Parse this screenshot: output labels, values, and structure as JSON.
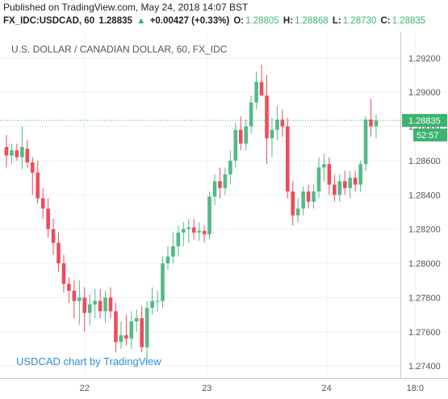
{
  "header": {
    "published": "Published on TradingView.com, May 24, 2018 14:07 BST",
    "symbol": "FX_IDC:USDCAD, 60",
    "last": "1.28835",
    "change": "+0.00427 (+0.33%)",
    "o_label": "O:",
    "o_val": "1.28805",
    "h_label": "H:",
    "h_val": "1.28868",
    "l_label": "L:",
    "l_val": "1.28730",
    "c_label": "C:",
    "c_val": "1.28835"
  },
  "chart_title": "U.S. DOLLAR / CANADIAN DOLLAR, 60, FX_IDC",
  "watermark": "USDCAD chart by TradingView",
  "colors": {
    "up": "#53b987",
    "down": "#eb4d5c",
    "grid": "#eef0f3",
    "axis_text": "#555555",
    "price_line": "#3cb371",
    "price_tag": "#3cb371",
    "timer_tag": "#3cb371"
  },
  "chart_data": {
    "type": "candlestick",
    "title": "U.S. DOLLAR / CANADIAN DOLLAR, 60, FX_IDC",
    "ylim": [
      1.2733,
      1.2935
    ],
    "yticks": [
      "1.29200",
      "1.29000",
      "1.28800",
      "1.28600",
      "1.28400",
      "1.28200",
      "1.28000",
      "1.27800",
      "1.27600",
      "1.27400"
    ],
    "ytick_values": [
      1.292,
      1.29,
      1.288,
      1.286,
      1.284,
      1.282,
      1.28,
      1.278,
      1.276,
      1.274
    ],
    "xticks": [
      "22",
      "23",
      "24",
      "18:0"
    ],
    "xtick_index": [
      15,
      38.5,
      61.5,
      78.5
    ],
    "last_price": "1.28835",
    "last_price_value": 1.28835,
    "countdown": "52:57",
    "candles": [
      {
        "o": 1.2868,
        "h": 1.2875,
        "l": 1.2856,
        "c": 1.2863
      },
      {
        "o": 1.2863,
        "h": 1.287,
        "l": 1.2858,
        "c": 1.2866
      },
      {
        "o": 1.2866,
        "h": 1.287,
        "l": 1.286,
        "c": 1.2862
      },
      {
        "o": 1.2862,
        "h": 1.288,
        "l": 1.2855,
        "c": 1.2868
      },
      {
        "o": 1.2867,
        "h": 1.2872,
        "l": 1.2856,
        "c": 1.2859
      },
      {
        "o": 1.2859,
        "h": 1.2862,
        "l": 1.284,
        "c": 1.2853
      },
      {
        "o": 1.2853,
        "h": 1.286,
        "l": 1.2835,
        "c": 1.2838
      },
      {
        "o": 1.2838,
        "h": 1.2844,
        "l": 1.2826,
        "c": 1.2832
      },
      {
        "o": 1.2832,
        "h": 1.2838,
        "l": 1.2815,
        "c": 1.282
      },
      {
        "o": 1.282,
        "h": 1.2826,
        "l": 1.2805,
        "c": 1.2812
      },
      {
        "o": 1.2812,
        "h": 1.2818,
        "l": 1.2795,
        "c": 1.28
      },
      {
        "o": 1.28,
        "h": 1.2805,
        "l": 1.2783,
        "c": 1.2788
      },
      {
        "o": 1.2788,
        "h": 1.2792,
        "l": 1.2777,
        "c": 1.2784
      },
      {
        "o": 1.2784,
        "h": 1.279,
        "l": 1.2768,
        "c": 1.2778
      },
      {
        "o": 1.2778,
        "h": 1.279,
        "l": 1.2764,
        "c": 1.278
      },
      {
        "o": 1.278,
        "h": 1.2786,
        "l": 1.276,
        "c": 1.2771
      },
      {
        "o": 1.2771,
        "h": 1.2782,
        "l": 1.2764,
        "c": 1.2776
      },
      {
        "o": 1.2776,
        "h": 1.2785,
        "l": 1.2768,
        "c": 1.2778
      },
      {
        "o": 1.2778,
        "h": 1.2785,
        "l": 1.2768,
        "c": 1.2772
      },
      {
        "o": 1.2772,
        "h": 1.2784,
        "l": 1.2765,
        "c": 1.278
      },
      {
        "o": 1.278,
        "h": 1.2786,
        "l": 1.2768,
        "c": 1.2772
      },
      {
        "o": 1.2772,
        "h": 1.2777,
        "l": 1.2748,
        "c": 1.2754
      },
      {
        "o": 1.2754,
        "h": 1.2766,
        "l": 1.275,
        "c": 1.2758
      },
      {
        "o": 1.2758,
        "h": 1.277,
        "l": 1.2752,
        "c": 1.2756
      },
      {
        "o": 1.2756,
        "h": 1.2772,
        "l": 1.275,
        "c": 1.2766
      },
      {
        "o": 1.2766,
        "h": 1.2773,
        "l": 1.276,
        "c": 1.2768
      },
      {
        "o": 1.2768,
        "h": 1.2775,
        "l": 1.2748,
        "c": 1.2751
      },
      {
        "o": 1.2751,
        "h": 1.2778,
        "l": 1.2743,
        "c": 1.2774
      },
      {
        "o": 1.2774,
        "h": 1.2786,
        "l": 1.277,
        "c": 1.2778
      },
      {
        "o": 1.2778,
        "h": 1.2784,
        "l": 1.2772,
        "c": 1.2778
      },
      {
        "o": 1.2778,
        "h": 1.2804,
        "l": 1.2774,
        "c": 1.28
      },
      {
        "o": 1.28,
        "h": 1.281,
        "l": 1.2796,
        "c": 1.2804
      },
      {
        "o": 1.2804,
        "h": 1.2818,
        "l": 1.28,
        "c": 1.281
      },
      {
        "o": 1.281,
        "h": 1.2822,
        "l": 1.2804,
        "c": 1.2818
      },
      {
        "o": 1.2818,
        "h": 1.2824,
        "l": 1.281,
        "c": 1.282
      },
      {
        "o": 1.282,
        "h": 1.2826,
        "l": 1.2812,
        "c": 1.2821
      },
      {
        "o": 1.2821,
        "h": 1.2826,
        "l": 1.2814,
        "c": 1.2818
      },
      {
        "o": 1.2818,
        "h": 1.2824,
        "l": 1.2813,
        "c": 1.2819
      },
      {
        "o": 1.2819,
        "h": 1.2822,
        "l": 1.2812,
        "c": 1.2817
      },
      {
        "o": 1.2817,
        "h": 1.2842,
        "l": 1.2814,
        "c": 1.2839
      },
      {
        "o": 1.2839,
        "h": 1.2852,
        "l": 1.2834,
        "c": 1.2848
      },
      {
        "o": 1.2848,
        "h": 1.2856,
        "l": 1.2838,
        "c": 1.2844
      },
      {
        "o": 1.2844,
        "h": 1.2856,
        "l": 1.284,
        "c": 1.2852
      },
      {
        "o": 1.2852,
        "h": 1.2866,
        "l": 1.2846,
        "c": 1.286
      },
      {
        "o": 1.286,
        "h": 1.2882,
        "l": 1.2856,
        "c": 1.2878
      },
      {
        "o": 1.2878,
        "h": 1.2886,
        "l": 1.2866,
        "c": 1.287
      },
      {
        "o": 1.287,
        "h": 1.2884,
        "l": 1.2866,
        "c": 1.288
      },
      {
        "o": 1.288,
        "h": 1.2898,
        "l": 1.2876,
        "c": 1.2894
      },
      {
        "o": 1.2894,
        "h": 1.2912,
        "l": 1.289,
        "c": 1.2906
      },
      {
        "o": 1.2906,
        "h": 1.2916,
        "l": 1.2898,
        "c": 1.2898
      },
      {
        "o": 1.2898,
        "h": 1.291,
        "l": 1.2858,
        "c": 1.2873
      },
      {
        "o": 1.2873,
        "h": 1.2885,
        "l": 1.2862,
        "c": 1.2878
      },
      {
        "o": 1.2878,
        "h": 1.2892,
        "l": 1.2872,
        "c": 1.2884
      },
      {
        "o": 1.2884,
        "h": 1.289,
        "l": 1.2874,
        "c": 1.288
      },
      {
        "o": 1.288,
        "h": 1.2885,
        "l": 1.2838,
        "c": 1.2842
      },
      {
        "o": 1.2842,
        "h": 1.2848,
        "l": 1.2822,
        "c": 1.2828
      },
      {
        "o": 1.2828,
        "h": 1.2838,
        "l": 1.2824,
        "c": 1.2832
      },
      {
        "o": 1.2832,
        "h": 1.2845,
        "l": 1.2828,
        "c": 1.2842
      },
      {
        "o": 1.2842,
        "h": 1.2846,
        "l": 1.2832,
        "c": 1.2836
      },
      {
        "o": 1.2836,
        "h": 1.2846,
        "l": 1.2832,
        "c": 1.2842
      },
      {
        "o": 1.2842,
        "h": 1.2862,
        "l": 1.2838,
        "c": 1.2856
      },
      {
        "o": 1.2856,
        "h": 1.2864,
        "l": 1.2848,
        "c": 1.2858
      },
      {
        "o": 1.2858,
        "h": 1.2862,
        "l": 1.284,
        "c": 1.2846
      },
      {
        "o": 1.2846,
        "h": 1.2852,
        "l": 1.2836,
        "c": 1.284
      },
      {
        "o": 1.284,
        "h": 1.2852,
        "l": 1.2836,
        "c": 1.2848
      },
      {
        "o": 1.2848,
        "h": 1.2854,
        "l": 1.284,
        "c": 1.2844
      },
      {
        "o": 1.2844,
        "h": 1.2854,
        "l": 1.2838,
        "c": 1.285
      },
      {
        "o": 1.285,
        "h": 1.2854,
        "l": 1.2842,
        "c": 1.2846
      },
      {
        "o": 1.2846,
        "h": 1.286,
        "l": 1.2842,
        "c": 1.2858
      },
      {
        "o": 1.2858,
        "h": 1.2886,
        "l": 1.2854,
        "c": 1.2884
      },
      {
        "o": 1.2884,
        "h": 1.2896,
        "l": 1.2874,
        "c": 1.288
      },
      {
        "o": 1.288,
        "h": 1.2887,
        "l": 1.2873,
        "c": 1.28835
      }
    ]
  }
}
